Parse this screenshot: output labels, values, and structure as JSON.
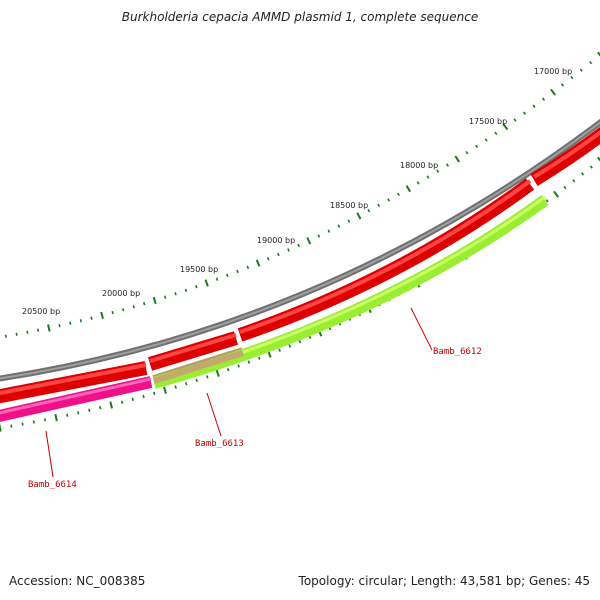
{
  "title": "Burkholderia cepacia AMMD plasmid 1, complete sequence",
  "footer": {
    "accession": "Accession: NC_008385",
    "summary": "Topology: circular; Length: 43,581 bp; Genes: 45"
  },
  "scale_labels": [
    "17000 bp",
    "17500 bp",
    "18000 bp",
    "18500 bp",
    "19000 bp",
    "19500 bp",
    "20000 bp",
    "20500 bp"
  ],
  "genes": [
    {
      "name": "Bamb_6612",
      "color": "#aaff33"
    },
    {
      "name": "Bamb_6613",
      "color": "#c4a96e"
    },
    {
      "name": "Bamb_6614",
      "color": "#ff3399"
    }
  ],
  "colors": {
    "backbone": "#888888",
    "forward_cds": "#ff0000",
    "ticks": "#1a7a1a",
    "label_line": "#cc0000"
  }
}
